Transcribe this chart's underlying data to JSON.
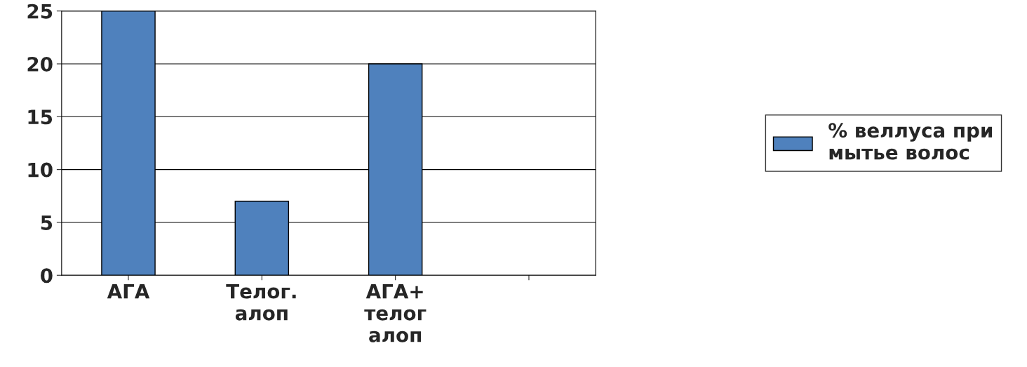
{
  "chart_data": {
    "type": "bar",
    "categories": [
      "АГА",
      "Телог.\nалоп",
      "АГА+\nтелог\nалоп",
      null
    ],
    "series": [
      {
        "name": "% веллуса при\nмытье волос",
        "color": "#4f81bd",
        "values": [
          25,
          7,
          20,
          null
        ]
      }
    ],
    "ylim": [
      0,
      25
    ],
    "yticks": [
      0,
      5,
      10,
      15,
      20,
      25
    ],
    "grid": "y",
    "legend": "right"
  }
}
